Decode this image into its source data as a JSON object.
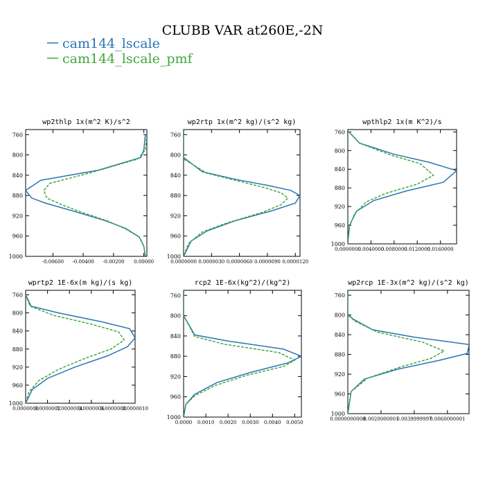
{
  "figure": {
    "title": "CLUBB VAR at260E,-2N",
    "legend": [
      {
        "name": "cam144_lscale",
        "color": "#2a74b3"
      },
      {
        "name": "cam144_lscale_pmf",
        "color": "#3fa83a"
      }
    ]
  },
  "chart_data": [
    {
      "type": "line",
      "title": "wp2thlp  1x(m^2 K)/s^2",
      "xlim": [
        -0.0078,
        0.0002
      ],
      "ylim": [
        1000,
        750
      ],
      "yticks": [
        760,
        800,
        840,
        880,
        920,
        960,
        1000
      ],
      "xtick_labels": [
        "-0.00600",
        "-0.00400",
        "-0.00200",
        "0.00000"
      ],
      "xticks": [
        -0.006,
        -0.004,
        -0.002,
        0.0
      ],
      "series": [
        {
          "name": "cam144_lscale",
          "color": "#2a74b3",
          "dash": false,
          "points": [
            [
              0.0001,
              760
            ],
            [
              0.0,
              790
            ],
            [
              -0.0002,
              805
            ],
            [
              -0.003,
              830
            ],
            [
              -0.0068,
              850
            ],
            [
              -0.0078,
              870
            ],
            [
              -0.0074,
              885
            ],
            [
              -0.0065,
              895
            ],
            [
              -0.0045,
              912
            ],
            [
              -0.0025,
              930
            ],
            [
              -0.0012,
              945
            ],
            [
              -0.0003,
              962
            ],
            [
              0.0,
              980
            ],
            [
              0.0001,
              1000
            ]
          ]
        },
        {
          "name": "cam144_lscale_pmf",
          "color": "#3fa83a",
          "dash": true,
          "points": [
            [
              0.0002,
              760
            ],
            [
              0.0001,
              790
            ],
            [
              -0.0004,
              808
            ],
            [
              -0.0035,
              835
            ],
            [
              -0.0062,
              856
            ],
            [
              -0.0066,
              870
            ],
            [
              -0.0064,
              885
            ],
            [
              -0.0055,
              897
            ],
            [
              -0.0042,
              912
            ],
            [
              -0.0024,
              930
            ],
            [
              -0.0012,
              946
            ],
            [
              -0.0003,
              962
            ],
            [
              0.0,
              980
            ],
            [
              0.0001,
              1000
            ]
          ]
        }
      ]
    },
    {
      "type": "line",
      "title": "wp2rtp  1x(m^2 kg)/(s^2 kg)",
      "xlim": [
        0.0,
        1.25e-05
      ],
      "ylim": [
        1000,
        750
      ],
      "yticks": [
        760,
        800,
        840,
        880,
        920,
        960,
        1000
      ],
      "xtick_labels": [
        "0.0000000",
        "0.0000030",
        "0.0000060",
        "0.0000090",
        "0.0000120"
      ],
      "xticks": [
        0.0,
        3e-06,
        6e-06,
        9e-06,
        1.2e-05
      ],
      "series": [
        {
          "name": "cam144_lscale",
          "color": "#2a74b3",
          "dash": false,
          "points": [
            [
              0.0,
              760
            ],
            [
              0.0,
              790
            ],
            [
              2e-09,
              805
            ],
            [
              2e-06,
              833
            ],
            [
              5.5e-06,
              848
            ],
            [
              9e-06,
              860
            ],
            [
              1.15e-05,
              870
            ],
            [
              1.25e-05,
              880
            ],
            [
              1.2e-05,
              895
            ],
            [
              9.5e-06,
              910
            ],
            [
              5.5e-06,
              930
            ],
            [
              2.5e-06,
              950
            ],
            [
              8e-07,
              970
            ],
            [
              0.0,
              1000
            ]
          ]
        },
        {
          "name": "cam144_lscale_pmf",
          "color": "#3fa83a",
          "dash": true,
          "points": [
            [
              0.0,
              760
            ],
            [
              0.0,
              790
            ],
            [
              4e-09,
              808
            ],
            [
              2.5e-06,
              836
            ],
            [
              6e-06,
              852
            ],
            [
              8.8e-06,
              865
            ],
            [
              1.05e-05,
              875
            ],
            [
              1.12e-05,
              885
            ],
            [
              1.05e-05,
              898
            ],
            [
              8.5e-06,
              913
            ],
            [
              4.5e-06,
              935
            ],
            [
              2e-06,
              952
            ],
            [
              5e-07,
              975
            ],
            [
              0.0,
              1000
            ]
          ]
        }
      ]
    },
    {
      "type": "line",
      "title": "wpthlp2  1x(m K^2)/s",
      "xlim": [
        0.0,
        0.0188
      ],
      "ylim": [
        1000,
        755
      ],
      "yticks": [
        760,
        800,
        840,
        880,
        920,
        960,
        1000
      ],
      "xtick_labels": [
        "0.0000000",
        "0.0040000",
        "0.0080000",
        "0.0120000",
        "0.0160000"
      ],
      "xticks": [
        0.0,
        0.004,
        0.008,
        0.012,
        0.016
      ],
      "series": [
        {
          "name": "cam144_lscale",
          "color": "#2a74b3",
          "dash": false,
          "points": [
            [
              0.0002,
              760
            ],
            [
              0.002,
              784
            ],
            [
              0.008,
              808
            ],
            [
              0.014,
              825
            ],
            [
              0.0188,
              843
            ],
            [
              0.0165,
              868
            ],
            [
              0.01,
              887
            ],
            [
              0.0045,
              907
            ],
            [
              0.0015,
              930
            ],
            [
              0.0003,
              960
            ],
            [
              0.0,
              1000
            ]
          ]
        },
        {
          "name": "cam144_lscale_pmf",
          "color": "#3fa83a",
          "dash": true,
          "points": [
            [
              0.0002,
              760
            ],
            [
              0.002,
              784
            ],
            [
              0.0075,
              810
            ],
            [
              0.0125,
              828
            ],
            [
              0.0148,
              853
            ],
            [
              0.012,
              872
            ],
            [
              0.0065,
              892
            ],
            [
              0.0032,
              910
            ],
            [
              0.0012,
              935
            ],
            [
              0.0002,
              965
            ],
            [
              0.0,
              1000
            ]
          ]
        }
      ]
    },
    {
      "type": "line",
      "title": "wprtp2  1E-6x(m kg)/(s kg)",
      "xlim": [
        0.0,
        1e-06
      ],
      "ylim": [
        1000,
        750
      ],
      "yticks": [
        760,
        800,
        840,
        880,
        920,
        960,
        1000
      ],
      "xtick_labels": [
        "0.0000000",
        "0.0000002",
        "0.0000004",
        "0.0000006",
        "0.0000008",
        "0.0000010"
      ],
      "xticks": [
        0.0,
        2e-07,
        4e-07,
        6e-07,
        8e-07,
        1e-06
      ],
      "series": [
        {
          "name": "cam144_lscale",
          "color": "#2a74b3",
          "dash": false,
          "points": [
            [
              0.0,
              760
            ],
            [
              5e-08,
              785
            ],
            [
              3e-07,
              800
            ],
            [
              7e-07,
              820
            ],
            [
              9.5e-07,
              835
            ],
            [
              1e-06,
              855
            ],
            [
              9.3e-07,
              875
            ],
            [
              7.5e-07,
              895
            ],
            [
              4.5e-07,
              920
            ],
            [
              2e-07,
              945
            ],
            [
              6e-08,
              970
            ],
            [
              0.0,
              1000
            ]
          ]
        },
        {
          "name": "cam144_lscale_pmf",
          "color": "#3fa83a",
          "dash": true,
          "points": [
            [
              0.0,
              760
            ],
            [
              4e-08,
              785
            ],
            [
              2.5e-07,
              805
            ],
            [
              6e-07,
              825
            ],
            [
              8.5e-07,
              842
            ],
            [
              9e-07,
              860
            ],
            [
              7.8e-07,
              880
            ],
            [
              5.5e-07,
              900
            ],
            [
              3e-07,
              925
            ],
            [
              1.2e-07,
              950
            ],
            [
              3e-08,
              975
            ],
            [
              0.0,
              1000
            ]
          ]
        }
      ]
    },
    {
      "type": "line",
      "title": "rcp2  1E-6x(kg^2)/(kg^2)",
      "xlim": [
        0.0,
        0.0053
      ],
      "ylim": [
        1000,
        750
      ],
      "yticks": [
        760,
        800,
        840,
        880,
        920,
        960,
        1000
      ],
      "xtick_labels": [
        "0.0000",
        "0.0010",
        "0.0020",
        "0.0030",
        "0.0040",
        "0.0050"
      ],
      "xticks": [
        0.0,
        0.001,
        0.002,
        0.003,
        0.004,
        0.005
      ],
      "series": [
        {
          "name": "cam144_lscale",
          "color": "#2a74b3",
          "dash": false,
          "points": [
            [
              0.0,
              760
            ],
            [
              0.0,
              800
            ],
            [
              0.0002,
              815
            ],
            [
              0.0005,
              838
            ],
            [
              0.002,
              850
            ],
            [
              0.0045,
              866
            ],
            [
              0.0053,
              880
            ],
            [
              0.0047,
              893
            ],
            [
              0.003,
              912
            ],
            [
              0.0015,
              932
            ],
            [
              0.0005,
              955
            ],
            [
              0.0001,
              975
            ],
            [
              0.0,
              1000
            ]
          ]
        },
        {
          "name": "cam144_lscale_pmf",
          "color": "#3fa83a",
          "dash": true,
          "points": [
            [
              0.0,
              760
            ],
            [
              0.0,
              800
            ],
            [
              0.0002,
              816
            ],
            [
              0.0005,
              841
            ],
            [
              0.0018,
              856
            ],
            [
              0.0043,
              873
            ],
            [
              0.005,
              888
            ],
            [
              0.0045,
              900
            ],
            [
              0.0028,
              918
            ],
            [
              0.0014,
              938
            ],
            [
              0.0005,
              958
            ],
            [
              0.0001,
              975
            ],
            [
              0.0,
              1000
            ]
          ]
        }
      ]
    },
    {
      "type": "line",
      "title": "wp2rcp  1E-3x(m^2 kg)/(s^2 kg)",
      "xlim": [
        0.0,
        0.0073
      ],
      "ylim": [
        1000,
        750
      ],
      "yticks": [
        760,
        800,
        840,
        880,
        920,
        960,
        1000
      ],
      "xtick_labels": [
        "0.0000000000",
        "0.0020000001",
        "0.0039999997",
        "0.0060000001"
      ],
      "xticks": [
        0.0,
        0.002,
        0.004,
        0.006
      ],
      "series": [
        {
          "name": "cam144_lscale",
          "color": "#2a74b3",
          "dash": false,
          "points": [
            [
              0.0,
              760
            ],
            [
              0.0,
              798
            ],
            [
              0.0003,
              808
            ],
            [
              0.0015,
              830
            ],
            [
              0.004,
              845
            ],
            [
              0.0073,
              860
            ],
            [
              0.0072,
              878
            ],
            [
              0.0055,
              892
            ],
            [
              0.003,
              910
            ],
            [
              0.001,
              930
            ],
            [
              0.0002,
              955
            ],
            [
              0.0,
              1000
            ]
          ]
        },
        {
          "name": "cam144_lscale_pmf",
          "color": "#3fa83a",
          "dash": true,
          "points": [
            [
              0.0,
              760
            ],
            [
              0.0,
              800
            ],
            [
              0.0004,
              812
            ],
            [
              0.0018,
              835
            ],
            [
              0.0045,
              855
            ],
            [
              0.0058,
              873
            ],
            [
              0.005,
              888
            ],
            [
              0.0032,
              905
            ],
            [
              0.0012,
              928
            ],
            [
              0.0002,
              955
            ],
            [
              0.0,
              1000
            ]
          ]
        }
      ]
    }
  ]
}
